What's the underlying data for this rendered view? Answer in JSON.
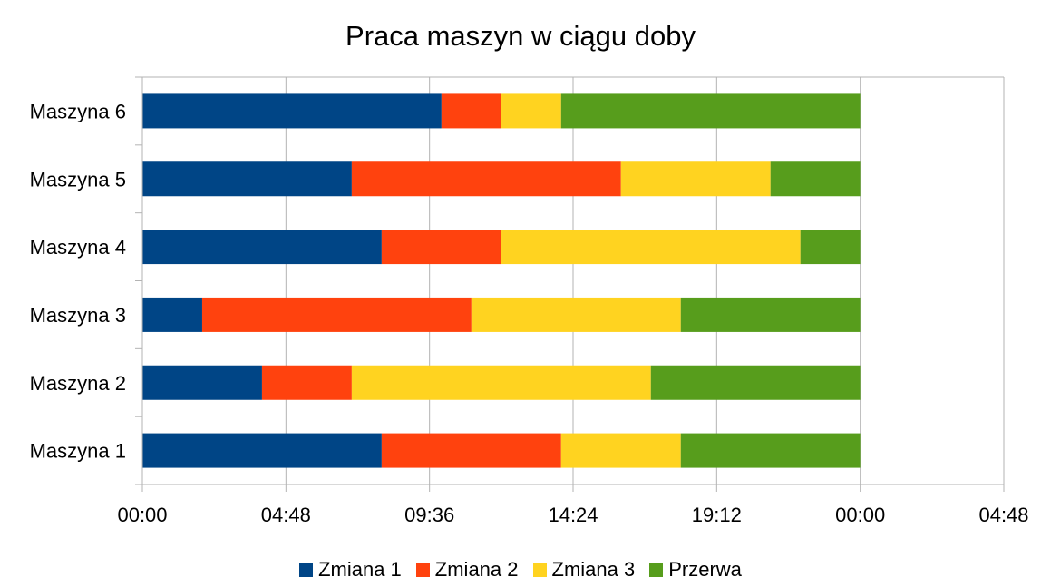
{
  "chart_data": {
    "type": "bar",
    "orientation": "horizontal",
    "stacked": true,
    "title": "Praca maszyn w ciągu doby",
    "categories": [
      "Maszyna 1",
      "Maszyna 2",
      "Maszyna 3",
      "Maszyna 4",
      "Maszyna 5",
      "Maszyna 6"
    ],
    "x_unit": "hours",
    "xlim": [
      0,
      28.8
    ],
    "x_ticks": [
      0,
      4.8,
      9.6,
      14.4,
      19.2,
      24,
      28.8
    ],
    "x_tick_labels": [
      "00:00",
      "04:48",
      "09:36",
      "14:24",
      "19:12",
      "00:00",
      "04:48"
    ],
    "grid": true,
    "legend_position": "bottom",
    "series": [
      {
        "name": "Zmiana 1",
        "color": "#004586",
        "values": [
          8,
          4,
          2,
          8,
          7,
          10
        ]
      },
      {
        "name": "Zmiana 2",
        "color": "#ff420e",
        "values": [
          6,
          3,
          9,
          4,
          9,
          2
        ]
      },
      {
        "name": "Zmiana 3",
        "color": "#ffd320",
        "values": [
          4,
          10,
          7,
          10,
          5,
          2
        ]
      },
      {
        "name": "Przerwa",
        "color": "#579d1c",
        "values": [
          6,
          7,
          6,
          2,
          3,
          10
        ]
      }
    ]
  }
}
